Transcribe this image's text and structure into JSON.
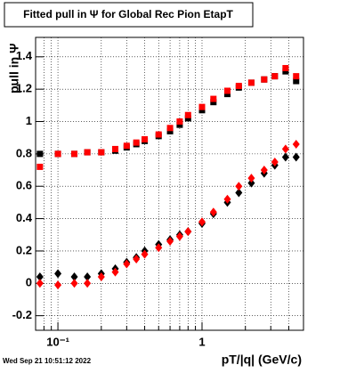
{
  "chart_data": {
    "type": "scatter",
    "title": "Fitted pull in  Ψ  for Global Rec Pion EtapT",
    "timestamp": "Wed Sep 21 10:51:12 2022",
    "x_label": "pT/|q| (GeV/c)",
    "y_label": "pull in Ψ",
    "log_x": true,
    "grid": true,
    "xlim": [
      0.07,
      5.06
    ],
    "ylim": [
      -0.29,
      1.52
    ],
    "xticks": [
      {
        "value": 0.1,
        "label": "10⁻¹"
      },
      1
    ],
    "xminorticks": [
      0.08,
      0.09,
      0.2,
      0.3,
      0.4,
      0.5,
      0.6,
      0.7,
      0.8,
      0.9,
      2,
      3,
      4
    ],
    "yticks": [
      -0.2,
      0,
      0.2,
      0.4,
      0.6,
      0.8,
      1,
      1.2,
      1.4
    ],
    "x": [
      0.075,
      0.1,
      0.13,
      0.16,
      0.2,
      0.25,
      0.3,
      0.35,
      0.4,
      0.5,
      0.6,
      0.7,
      0.8,
      1.0,
      1.2,
      1.5,
      1.8,
      2.2,
      2.7,
      3.2,
      3.8,
      4.5
    ],
    "series": [
      {
        "marker": "square",
        "color": "#000000",
        "values": [
          0.8,
          0.8,
          0.8,
          0.81,
          0.81,
          0.82,
          0.84,
          0.86,
          0.88,
          0.91,
          0.94,
          0.98,
          1.02,
          1.07,
          1.12,
          1.17,
          1.21,
          1.24,
          1.26,
          1.28,
          1.31,
          1.25
        ]
      },
      {
        "marker": "square",
        "color": "#ff0000",
        "values": [
          0.72,
          0.8,
          0.8,
          0.81,
          0.81,
          0.83,
          0.85,
          0.87,
          0.89,
          0.92,
          0.96,
          1.0,
          1.04,
          1.09,
          1.14,
          1.19,
          1.22,
          1.24,
          1.26,
          1.28,
          1.33,
          1.28
        ]
      },
      {
        "marker": "diamond",
        "color": "#000000",
        "values": [
          0.04,
          0.06,
          0.04,
          0.04,
          0.06,
          0.09,
          0.13,
          0.16,
          0.2,
          0.24,
          0.27,
          0.3,
          0.32,
          0.37,
          0.43,
          0.5,
          0.56,
          0.62,
          0.68,
          0.73,
          0.78,
          0.78
        ]
      },
      {
        "marker": "diamond",
        "color": "#ff0000",
        "values": [
          0.0,
          -0.01,
          0.0,
          0.0,
          0.04,
          0.07,
          0.12,
          0.15,
          0.18,
          0.22,
          0.26,
          0.29,
          0.32,
          0.38,
          0.44,
          0.52,
          0.6,
          0.65,
          0.7,
          0.75,
          0.83,
          0.86
        ]
      }
    ]
  }
}
